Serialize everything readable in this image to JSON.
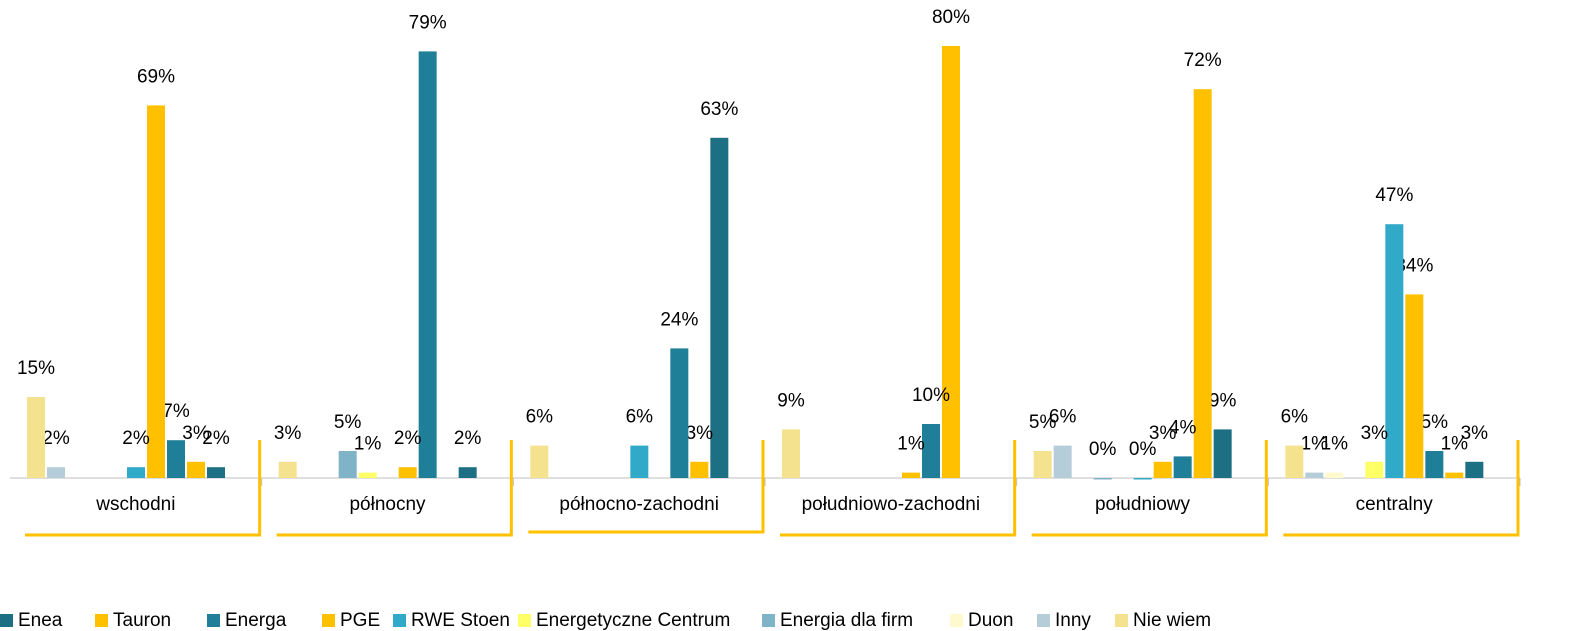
{
  "chart_data": {
    "type": "bar",
    "categories": [
      "wschodni",
      "północny",
      "północno-zachodni",
      "południowo-zachodni",
      "południowy",
      "centralny"
    ],
    "ylim": [
      0,
      80
    ],
    "series": [
      {
        "name": "Enea",
        "color": "#1d6f83",
        "values": [
          2,
          2,
          63,
          null,
          9,
          3
        ],
        "value_labels": [
          "2%",
          "2%",
          "63%",
          null,
          "9%",
          "3%"
        ]
      },
      {
        "name": "Tauron",
        "color": "#ffc000",
        "values": [
          3,
          null,
          3,
          80,
          72,
          1
        ],
        "value_labels": [
          "3%",
          null,
          "3%",
          "80%",
          "72%",
          "1%"
        ]
      },
      {
        "name": "Energa",
        "color": "#1f7f99",
        "values": [
          7,
          79,
          24,
          10,
          4,
          5
        ],
        "value_labels": [
          "7%",
          "79%",
          "24%",
          "10%",
          "4%",
          "5%"
        ]
      },
      {
        "name": "PGE",
        "color": "#ffc000",
        "values": [
          69,
          2,
          null,
          1,
          3,
          34
        ],
        "value_labels": [
          "69%",
          "2%",
          null,
          "1%",
          "3%",
          "34%"
        ]
      },
      {
        "name": "RWE Stoen",
        "color": "#31a9c9",
        "values": [
          2,
          null,
          6,
          null,
          0,
          47
        ],
        "value_labels": [
          "2%",
          null,
          "6%",
          null,
          "0%",
          "47%"
        ]
      },
      {
        "name": "Energetyczne Centrum",
        "color": "#ffff66",
        "values": [
          null,
          1,
          null,
          null,
          null,
          3
        ],
        "value_labels": [
          null,
          "1%",
          null,
          null,
          null,
          "3%"
        ]
      },
      {
        "name": "Energia dla firm",
        "color": "#7fb3c8",
        "values": [
          null,
          5,
          null,
          null,
          0,
          null
        ],
        "value_labels": [
          null,
          "5%",
          null,
          null,
          "0%",
          null
        ]
      },
      {
        "name": "Duon",
        "color": "#fffacd",
        "values": [
          null,
          null,
          null,
          null,
          null,
          1
        ],
        "value_labels": [
          null,
          null,
          null,
          null,
          null,
          "1%"
        ]
      },
      {
        "name": "Inny",
        "color": "#b4cdd8",
        "values": [
          2,
          null,
          null,
          null,
          6,
          1
        ],
        "value_labels": [
          "2%",
          null,
          null,
          null,
          "6%",
          "1%"
        ]
      },
      {
        "name": "Nie wiem",
        "color": "#f5e28f",
        "values": [
          15,
          3,
          6,
          9,
          5,
          6
        ],
        "value_labels": [
          "15%",
          "3%",
          "6%",
          "9%",
          "5%",
          "6%"
        ]
      }
    ]
  }
}
